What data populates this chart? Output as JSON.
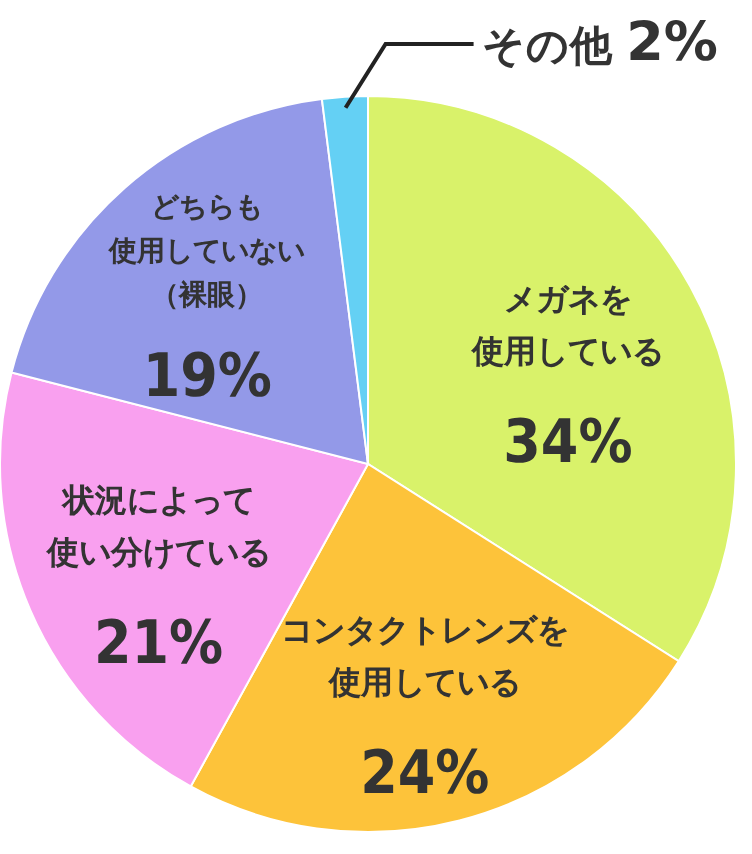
{
  "chart_data": {
    "type": "pie",
    "categories": [
      "メガネを使用している",
      "コンタクトレンズを使用している",
      "状況によって使い分けている",
      "どちらも使用していない（裸眼）",
      "その他"
    ],
    "values": [
      34,
      24,
      21,
      19,
      2
    ],
    "value_labels": [
      "34%",
      "24%",
      "21%",
      "19%",
      "2%"
    ],
    "colors": [
      "#d9f26a",
      "#fdc33a",
      "#f9a0ef",
      "#9399e8",
      "#64d0f4"
    ]
  }
}
